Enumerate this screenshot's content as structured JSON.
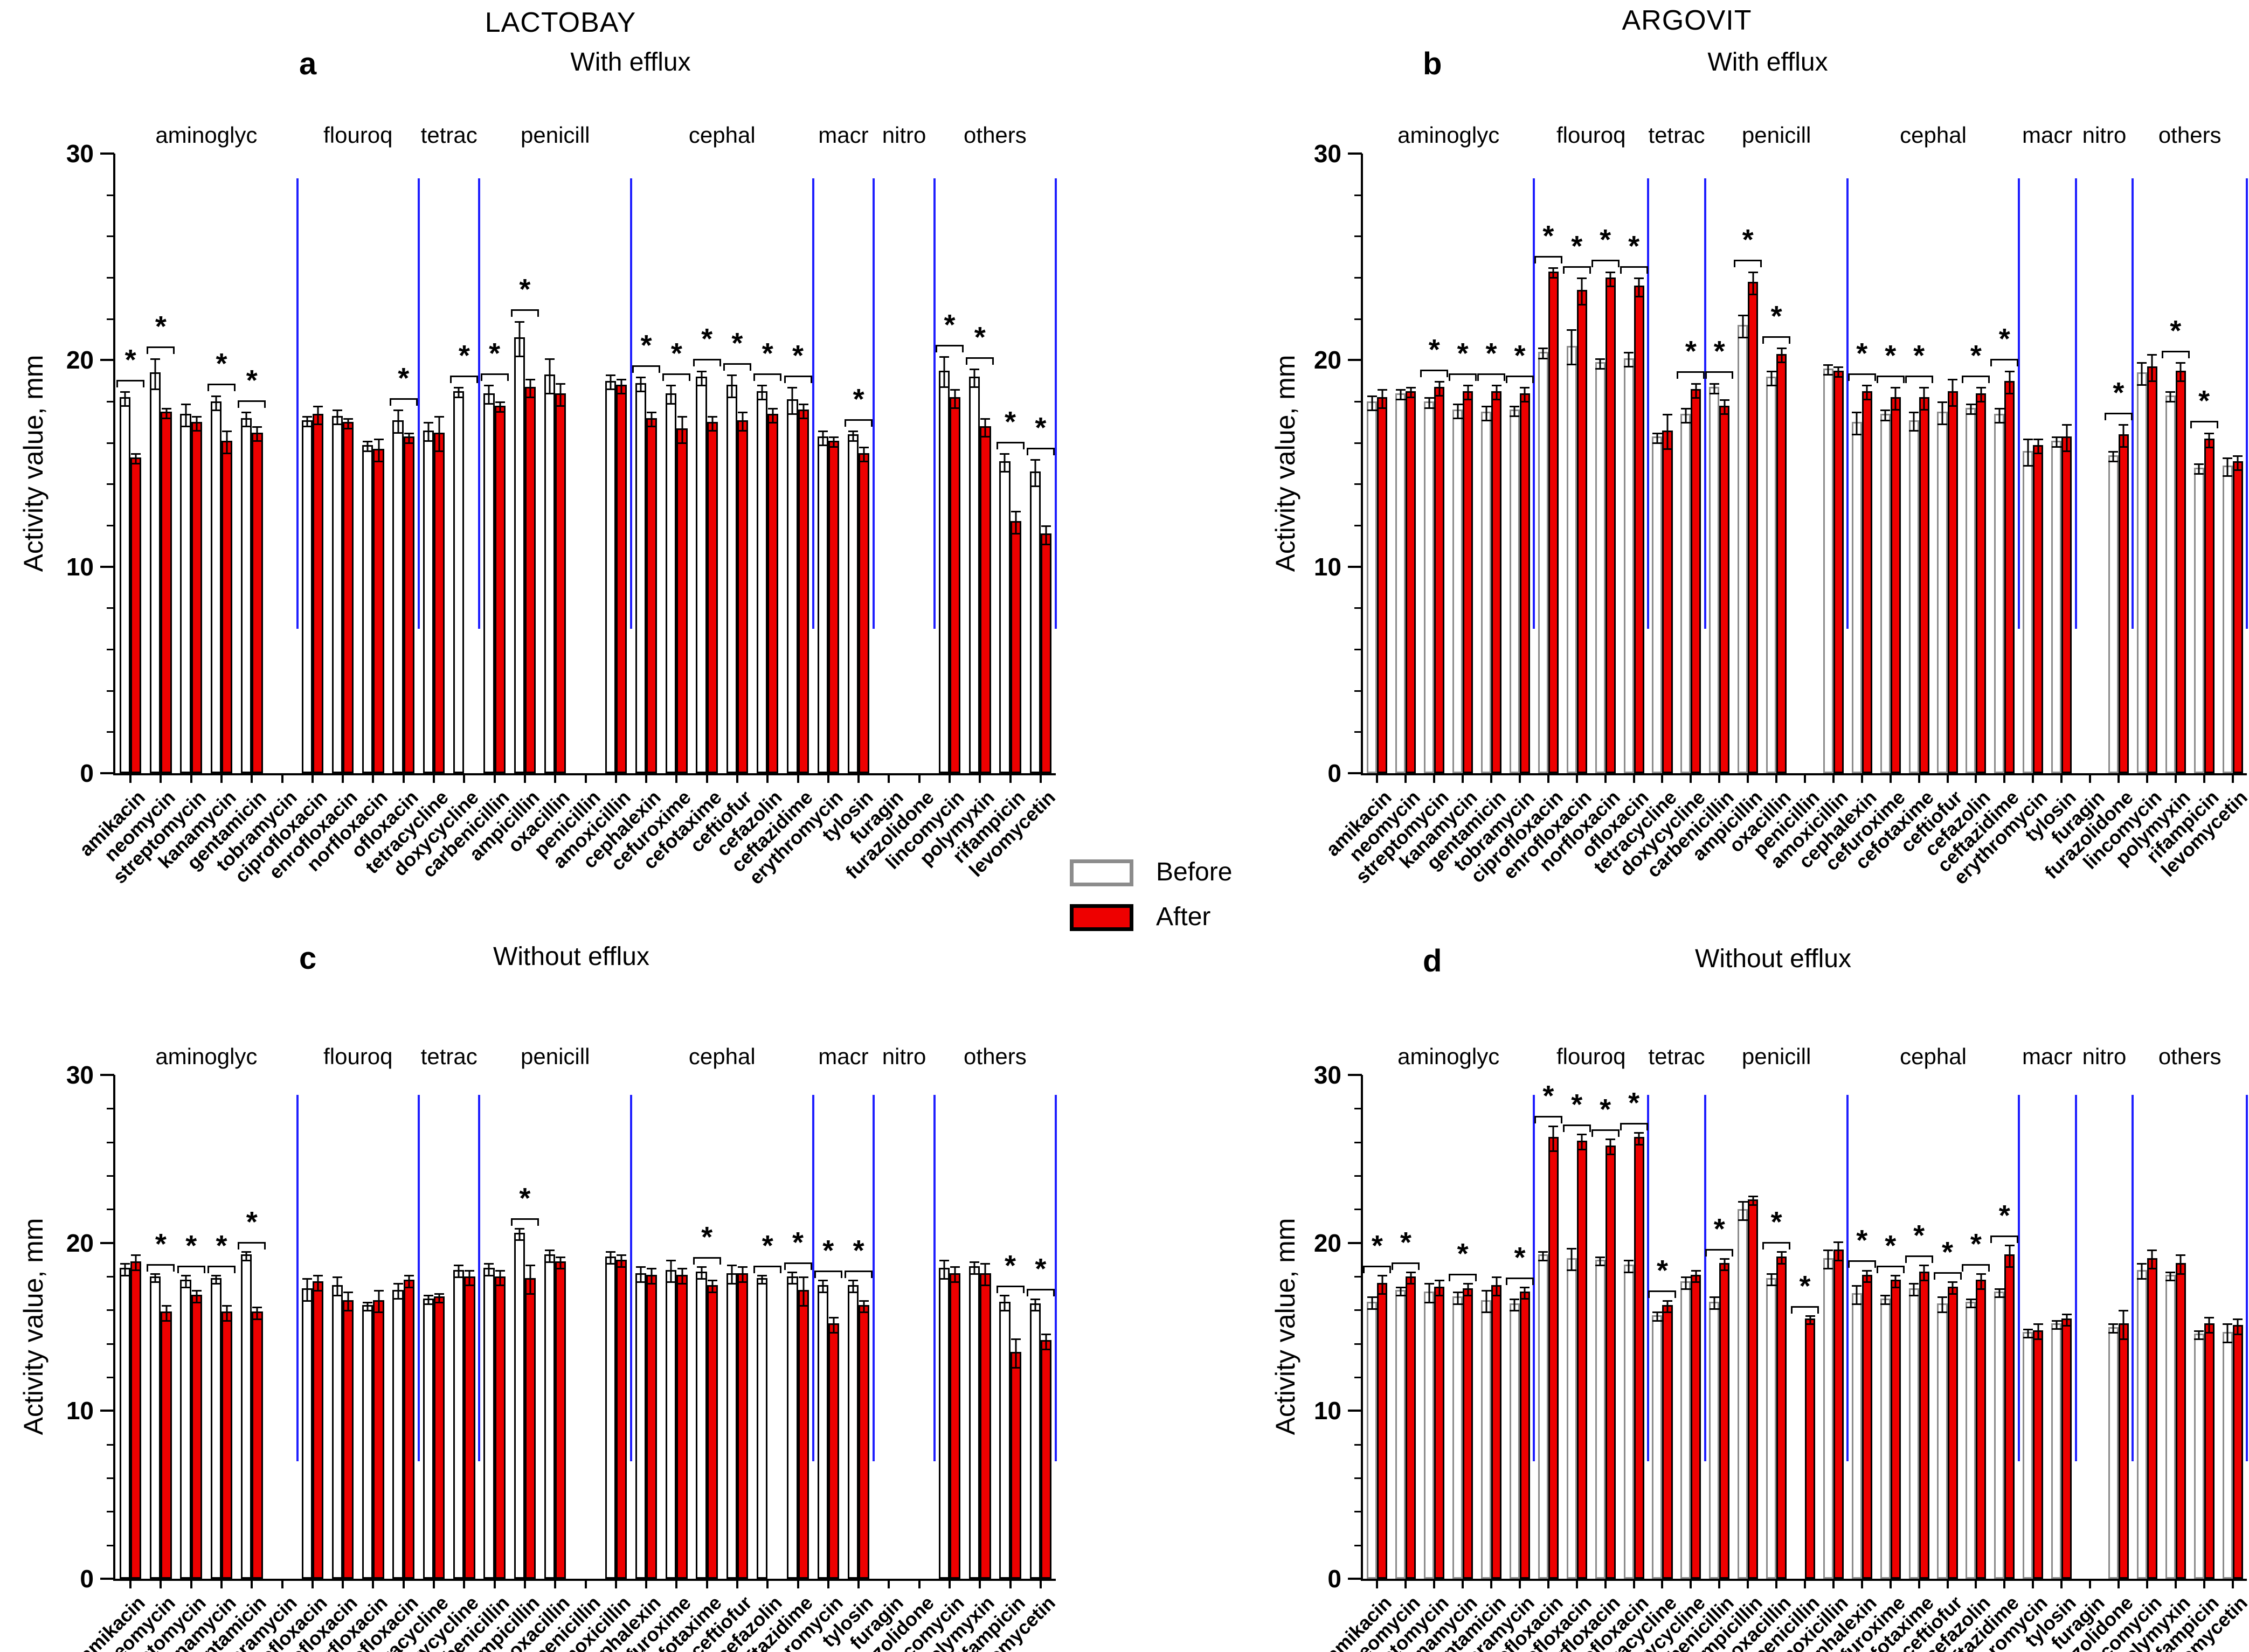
{
  "figure": {
    "left_column_title": "LACTOBAY",
    "right_column_title": "ARGOVIT",
    "ylabel": "Activity value, mm",
    "legend": {
      "before_label": "Before",
      "after_label": "After"
    },
    "colors": {
      "after_fill": "#ee0000",
      "before_fill": "#ffffff",
      "separator_blue": "#1f1fff",
      "before_border_panels_ac": "#000000",
      "before_border_panels_bd": "#8c8c8c"
    }
  },
  "chart_data": {
    "type": "bar",
    "ylabel": "Activity value, mm",
    "ylim": [
      0,
      30
    ],
    "yticks": [
      0,
      10,
      20,
      30
    ],
    "legend": [
      "Before",
      "After"
    ],
    "categories": [
      "amikacin",
      "neomycin",
      "streptomycin",
      "kanamycin",
      "gentamicin",
      "tobramycin",
      "ciprofloxacin",
      "enrofloxacin",
      "norfloxacin",
      "ofloxacin",
      "tetracycline",
      "doxycycline",
      "carbenicillin",
      "ampicillin",
      "oxacillin",
      "penicillin",
      "amoxicillin",
      "cephalexin",
      "cefuroxime",
      "cefotaxime",
      "ceftiofur",
      "cefazolin",
      "ceftazidime",
      "erythromycin",
      "tylosin",
      "furagin",
      "furazolidone",
      "lincomycin",
      "polymyxin",
      "rifampicin",
      "levomycetin"
    ],
    "groups": [
      {
        "label": "aminoglyc",
        "from": 0,
        "to": 6
      },
      {
        "label": "flouroq",
        "from": 6,
        "to": 10
      },
      {
        "label": "tetrac",
        "from": 10,
        "to": 12
      },
      {
        "label": "penicill",
        "from": 12,
        "to": 17
      },
      {
        "label": "cephal",
        "from": 17,
        "to": 23
      },
      {
        "label": "macr",
        "from": 23,
        "to": 25
      },
      {
        "label": "nitro",
        "from": 25,
        "to": 27
      },
      {
        "label": "others",
        "from": 27,
        "to": 31
      }
    ],
    "panels": [
      {
        "letter": "a",
        "treatment": "LACTOBAY",
        "subtitle": "With efflux",
        "series": [
          {
            "name": "Before",
            "values": [
              18.2,
              19.4,
              17.4,
              18.0,
              17.2,
              null,
              17.1,
              17.3,
              15.9,
              17.1,
              16.6,
              18.5,
              18.4,
              21.1,
              19.3,
              null,
              19.0,
              18.9,
              18.4,
              19.2,
              18.8,
              18.5,
              18.1,
              16.3,
              16.4,
              null,
              null,
              19.5,
              19.2,
              15.1,
              14.6
            ]
          },
          {
            "name": "After",
            "values": [
              15.3,
              17.5,
              17.0,
              16.1,
              16.5,
              null,
              17.4,
              17.0,
              15.7,
              16.3,
              16.5,
              null,
              17.8,
              18.7,
              18.4,
              null,
              18.8,
              17.2,
              16.7,
              17.0,
              17.1,
              17.4,
              17.6,
              16.1,
              15.5,
              null,
              null,
              18.2,
              16.8,
              12.2,
              11.6
            ]
          }
        ],
        "errors": [
          [
            0.3,
            0.7,
            0.5,
            0.3,
            0.3,
            0,
            0.2,
            0.3,
            0.2,
            0.5,
            0.4,
            0.2,
            0.4,
            0.8,
            0.8,
            0,
            0.3,
            0.3,
            0.4,
            0.3,
            0.5,
            0.3,
            0.6,
            0.3,
            0.2,
            0,
            0,
            0.7,
            0.4,
            0.4,
            0.6
          ],
          [
            0.2,
            0.2,
            0.3,
            0.5,
            0.3,
            0,
            0.4,
            0.2,
            0.5,
            0.2,
            0.8,
            0,
            0.2,
            0.4,
            0.5,
            0,
            0.3,
            0.3,
            0.6,
            0.3,
            0.4,
            0.3,
            0.3,
            0.2,
            0.3,
            0,
            0,
            0.4,
            0.4,
            0.5,
            0.4
          ]
        ],
        "significant": [
          0,
          1,
          3,
          4,
          9,
          11,
          12,
          13,
          17,
          18,
          19,
          20,
          21,
          22,
          24,
          27,
          28,
          29,
          30
        ]
      },
      {
        "letter": "b",
        "treatment": "ARGOVIT",
        "subtitle": "With efflux",
        "series": [
          {
            "name": "Before",
            "values": [
              18.0,
              18.4,
              18.0,
              17.6,
              17.5,
              17.6,
              20.4,
              20.7,
              19.9,
              20.1,
              16.3,
              17.4,
              18.7,
              21.7,
              19.2,
              null,
              19.6,
              17.0,
              17.4,
              17.1,
              17.5,
              17.7,
              17.4,
              15.6,
              16.1,
              null,
              15.4,
              19.4,
              18.3,
              14.8,
              14.9
            ]
          },
          {
            "name": "After",
            "values": [
              18.2,
              18.5,
              18.7,
              18.5,
              18.5,
              18.4,
              24.3,
              23.4,
              24.0,
              23.6,
              16.6,
              18.6,
              17.8,
              23.8,
              20.3,
              null,
              19.5,
              18.5,
              18.2,
              18.2,
              18.5,
              18.4,
              19.0,
              15.9,
              16.3,
              null,
              16.4,
              19.7,
              19.5,
              16.2,
              15.1
            ]
          }
        ],
        "errors": [
          [
            0.3,
            0.2,
            0.2,
            0.3,
            0.3,
            0.2,
            0.2,
            0.8,
            0.2,
            0.3,
            0.2,
            0.3,
            0.2,
            0.5,
            0.3,
            0,
            0.2,
            0.5,
            0.2,
            0.4,
            0.5,
            0.2,
            0.3,
            0.6,
            0.2,
            0,
            0.2,
            0.5,
            0.2,
            0.2,
            0.4
          ],
          [
            0.4,
            0.2,
            0.3,
            0.3,
            0.3,
            0.3,
            0.2,
            0.6,
            0.3,
            0.4,
            0.8,
            0.3,
            0.3,
            0.5,
            0.3,
            0,
            0.2,
            0.3,
            0.5,
            0.5,
            0.6,
            0.3,
            0.5,
            0.3,
            0.6,
            0,
            0.5,
            0.6,
            0.4,
            0.3,
            0.3
          ]
        ],
        "significant": [
          2,
          3,
          4,
          5,
          6,
          7,
          8,
          9,
          11,
          12,
          13,
          14,
          17,
          18,
          19,
          21,
          22,
          26,
          28,
          29
        ]
      },
      {
        "letter": "c",
        "treatment": "LACTOBAY",
        "subtitle": "Without efflux",
        "series": [
          {
            "name": "Before",
            "values": [
              18.5,
              18.0,
              17.8,
              17.9,
              19.3,
              null,
              17.3,
              17.5,
              16.3,
              17.2,
              16.7,
              18.4,
              18.5,
              20.6,
              19.3,
              null,
              19.2,
              18.2,
              18.4,
              18.3,
              18.2,
              17.9,
              18.0,
              17.5,
              17.5,
              null,
              null,
              18.5,
              18.6,
              16.5,
              16.4
            ]
          },
          {
            "name": "After",
            "values": [
              18.9,
              15.9,
              16.9,
              15.9,
              15.9,
              null,
              17.7,
              16.6,
              16.6,
              17.8,
              16.8,
              18.0,
              18.0,
              17.9,
              18.9,
              null,
              19.0,
              18.1,
              18.1,
              17.5,
              18.2,
              null,
              17.2,
              15.2,
              16.3,
              null,
              null,
              18.2,
              18.2,
              13.5,
              14.2
            ]
          }
        ],
        "errors": [
          [
            0.3,
            0.2,
            0.3,
            0.2,
            0.2,
            0,
            0.6,
            0.5,
            0.2,
            0.4,
            0.2,
            0.3,
            0.3,
            0.3,
            0.3,
            0,
            0.3,
            0.4,
            0.6,
            0.3,
            0.5,
            0.2,
            0.3,
            0.3,
            0.3,
            0,
            0,
            0.5,
            0.3,
            0.4,
            0.3
          ],
          [
            0.4,
            0.4,
            0.3,
            0.4,
            0.3,
            0,
            0.4,
            0.5,
            0.6,
            0.3,
            0.2,
            0.4,
            0.4,
            0.8,
            0.3,
            0,
            0.3,
            0.4,
            0.4,
            0.3,
            0.4,
            0,
            0.8,
            0.4,
            0.3,
            0,
            0,
            0.4,
            0.6,
            0.8,
            0.4
          ]
        ],
        "significant": [
          1,
          2,
          3,
          4,
          13,
          19,
          21,
          22,
          23,
          24,
          29,
          30
        ]
      },
      {
        "letter": "d",
        "treatment": "ARGOVIT",
        "subtitle": "Without efflux",
        "series": [
          {
            "name": "Before",
            "values": [
              16.5,
              17.2,
              17.1,
              16.8,
              16.6,
              16.4,
              19.3,
              19.1,
              19.0,
              18.7,
              15.7,
              17.7,
              16.5,
              22.0,
              17.9,
              null,
              19.1,
              17.0,
              16.7,
              17.3,
              16.4,
              16.5,
              17.1,
              14.7,
              15.2,
              null,
              15.0,
              18.4,
              18.1,
              14.6,
              14.7
            ]
          },
          {
            "name": "After",
            "values": [
              17.6,
              18.0,
              17.4,
              17.3,
              17.5,
              17.1,
              26.3,
              26.1,
              25.8,
              26.3,
              16.3,
              18.1,
              18.8,
              22.6,
              19.2,
              15.5,
              19.6,
              18.1,
              17.8,
              18.3,
              17.4,
              17.8,
              19.3,
              14.8,
              15.5,
              null,
              15.2,
              19.1,
              18.8,
              15.2,
              15.1
            ]
          }
        ],
        "errors": [
          [
            0.3,
            0.2,
            0.5,
            0.3,
            0.6,
            0.3,
            0.2,
            0.6,
            0.2,
            0.3,
            0.2,
            0.3,
            0.3,
            0.5,
            0.3,
            0,
            0.5,
            0.5,
            0.2,
            0.3,
            0.4,
            0.2,
            0.2,
            0.2,
            0.2,
            0,
            0.2,
            0.4,
            0.2,
            0.2,
            0.5
          ],
          [
            0.5,
            0.3,
            0.4,
            0.3,
            0.5,
            0.3,
            0.7,
            0.4,
            0.4,
            0.3,
            0.3,
            0.3,
            0.3,
            0.2,
            0.3,
            0.2,
            0.5,
            0.3,
            0.3,
            0.4,
            0.3,
            0.4,
            0.6,
            0.4,
            0.3,
            0,
            0.8,
            0.5,
            0.5,
            0.4,
            0.4
          ]
        ],
        "significant": [
          0,
          1,
          3,
          5,
          6,
          7,
          8,
          9,
          10,
          12,
          14,
          15,
          17,
          18,
          19,
          20,
          21,
          22
        ]
      }
    ]
  }
}
